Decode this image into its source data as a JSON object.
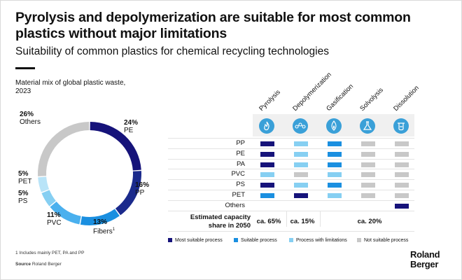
{
  "title": "Pyrolysis and depolymerization are suitable for most common plastics without major limitations",
  "subtitle": "Suitability of common plastics for chemical recycling technologies",
  "mix_label": "Material mix of global plastic waste, 2023",
  "colors": {
    "most": "#16137a",
    "suitable": "#1a8fe0",
    "limited": "#86cff2",
    "not": "#c8c8c8",
    "icon": "#3aa0d8"
  },
  "chart_data": [
    {
      "type": "pie",
      "title": "Material mix of global plastic waste, 2023",
      "slices": [
        {
          "label": "PE",
          "value": 24,
          "pct": "24%",
          "color": "#16137a"
        },
        {
          "label": "PP",
          "value": 16,
          "pct": "16%",
          "color": "#1b2a8c"
        },
        {
          "label": "Fibers",
          "sup": "1",
          "value": 13,
          "pct": "13%",
          "color": "#1a8fe0"
        },
        {
          "label": "PVC",
          "value": 11,
          "pct": "11%",
          "color": "#4ab0ee"
        },
        {
          "label": "PS",
          "value": 5,
          "pct": "5%",
          "color": "#86cff2"
        },
        {
          "label": "PET",
          "value": 5,
          "pct": "5%",
          "color": "#b9e4f8"
        },
        {
          "label": "Others",
          "value": 26,
          "pct": "26%",
          "color": "#c8c8c8"
        }
      ]
    },
    {
      "type": "table",
      "columns": [
        "Pyrolysis",
        "Depolymerization",
        "Gasification",
        "Solvolysis",
        "Dissolution"
      ],
      "rows": [
        {
          "label": "PP",
          "cells": [
            "most",
            "limited",
            "suitable",
            "not",
            "not"
          ]
        },
        {
          "label": "PE",
          "cells": [
            "most",
            "limited",
            "suitable",
            "not",
            "not"
          ]
        },
        {
          "label": "PA",
          "cells": [
            "most",
            "limited",
            "suitable",
            "not",
            "not"
          ]
        },
        {
          "label": "PVC",
          "cells": [
            "limited",
            "not",
            "limited",
            "not",
            "not"
          ]
        },
        {
          "label": "PS",
          "cells": [
            "most",
            "limited",
            "suitable",
            "not",
            "not"
          ]
        },
        {
          "label": "PET",
          "cells": [
            "suitable",
            "most",
            "limited",
            "not",
            "not"
          ]
        },
        {
          "label": "Others",
          "cells": [
            null,
            null,
            null,
            null,
            "most"
          ]
        }
      ],
      "capacity_label": "Estimated capacity share in 2050",
      "capacity": [
        "ca. 65%",
        "ca. 15%",
        "ca. 20%"
      ],
      "legend": [
        {
          "key": "most",
          "label": "Most suitable process"
        },
        {
          "key": "suitable",
          "label": "Suitable process"
        },
        {
          "key": "limited",
          "label": "Process with limitations"
        },
        {
          "key": "not",
          "label": "Not suitable process"
        }
      ]
    }
  ],
  "footnote": "1 Includes mainly PET, PA and PP",
  "source_label": "Source",
  "source_text": "Roland Berger",
  "logo_line1": "Roland",
  "logo_line2": "Berger"
}
